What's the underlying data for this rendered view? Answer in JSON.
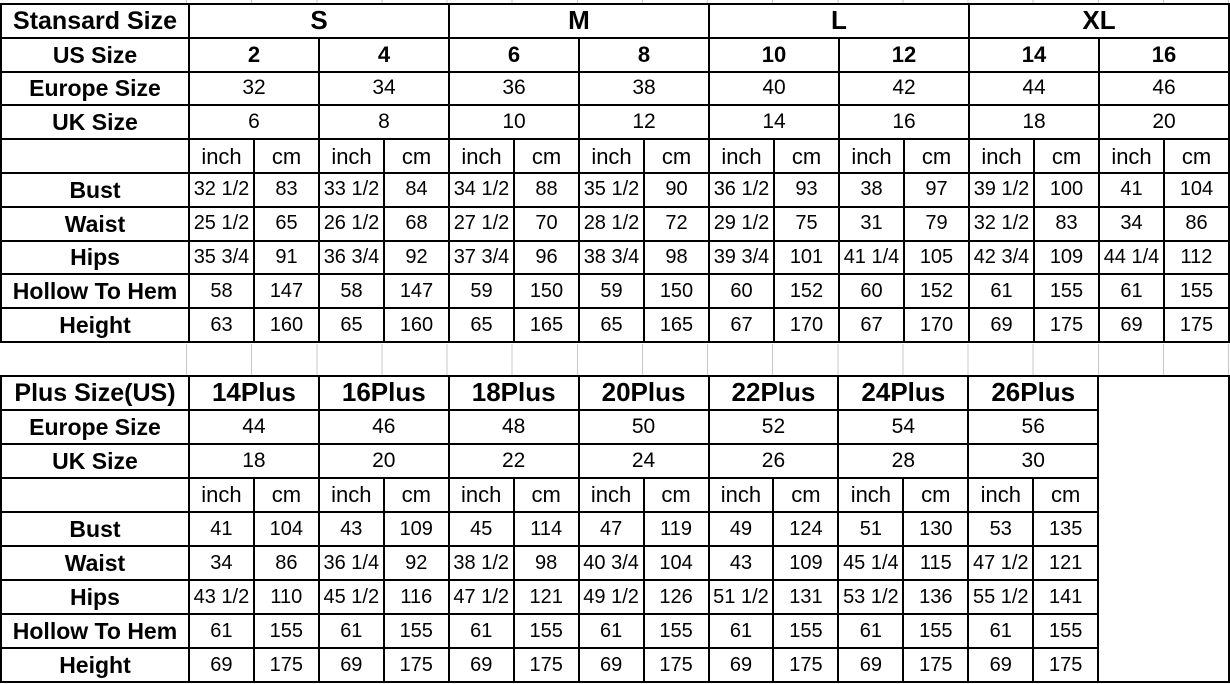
{
  "colors": {
    "background": "#ffffff",
    "table_border": "#000000",
    "faint_grid": "#c8c8c8",
    "text": "#000000"
  },
  "standard_table": {
    "corner_label": "Stansard Size",
    "groups": [
      "S",
      "M",
      "L",
      "XL"
    ],
    "size_rows": [
      {
        "label": "US Size",
        "bold_values": true,
        "values": [
          "2",
          "4",
          "6",
          "8",
          "10",
          "12",
          "14",
          "16"
        ]
      },
      {
        "label": "Europe Size",
        "bold_values": false,
        "values": [
          "32",
          "34",
          "36",
          "38",
          "40",
          "42",
          "44",
          "46"
        ]
      },
      {
        "label": "UK Size",
        "bold_values": false,
        "values": [
          "6",
          "8",
          "10",
          "12",
          "14",
          "16",
          "18",
          "20"
        ]
      }
    ],
    "unit_labels": [
      "inch",
      "cm"
    ],
    "measure_rows": [
      {
        "label": "Bust",
        "values": [
          "32 1/2",
          "83",
          "33 1/2",
          "84",
          "34 1/2",
          "88",
          "35 1/2",
          "90",
          "36 1/2",
          "93",
          "38",
          "97",
          "39 1/2",
          "100",
          "41",
          "104"
        ]
      },
      {
        "label": "Waist",
        "values": [
          "25 1/2",
          "65",
          "26 1/2",
          "68",
          "27 1/2",
          "70",
          "28 1/2",
          "72",
          "29 1/2",
          "75",
          "31",
          "79",
          "32 1/2",
          "83",
          "34",
          "86"
        ]
      },
      {
        "label": "Hips",
        "values": [
          "35 3/4",
          "91",
          "36 3/4",
          "92",
          "37 3/4",
          "96",
          "38 3/4",
          "98",
          "39 3/4",
          "101",
          "41 1/4",
          "105",
          "42 3/4",
          "109",
          "44 1/4",
          "112"
        ]
      },
      {
        "label": "Hollow To Hem",
        "values": [
          "58",
          "147",
          "58",
          "147",
          "59",
          "150",
          "59",
          "150",
          "60",
          "152",
          "60",
          "152",
          "61",
          "155",
          "61",
          "155"
        ]
      },
      {
        "label": "Height",
        "values": [
          "63",
          "160",
          "65",
          "160",
          "65",
          "165",
          "65",
          "165",
          "67",
          "170",
          "67",
          "170",
          "69",
          "175",
          "69",
          "175"
        ]
      }
    ]
  },
  "plus_table": {
    "corner_label": "Plus Size(US)",
    "groups": [
      "14Plus",
      "16Plus",
      "18Plus",
      "20Plus",
      "22Plus",
      "24Plus",
      "26Plus"
    ],
    "size_rows": [
      {
        "label": "Europe Size",
        "bold_values": false,
        "values": [
          "44",
          "46",
          "48",
          "50",
          "52",
          "54",
          "56"
        ]
      },
      {
        "label": "UK Size",
        "bold_values": false,
        "values": [
          "18",
          "20",
          "22",
          "24",
          "26",
          "28",
          "30"
        ]
      }
    ],
    "unit_labels": [
      "inch",
      "cm"
    ],
    "measure_rows": [
      {
        "label": "Bust",
        "values": [
          "41",
          "104",
          "43",
          "109",
          "45",
          "114",
          "47",
          "119",
          "49",
          "124",
          "51",
          "130",
          "53",
          "135"
        ]
      },
      {
        "label": "Waist",
        "values": [
          "34",
          "86",
          "36 1/4",
          "92",
          "38 1/2",
          "98",
          "40 3/4",
          "104",
          "43",
          "109",
          "45 1/4",
          "115",
          "47 1/2",
          "121"
        ]
      },
      {
        "label": "Hips",
        "values": [
          "43 1/2",
          "110",
          "45 1/2",
          "116",
          "47 1/2",
          "121",
          "49 1/2",
          "126",
          "51 1/2",
          "131",
          "53 1/2",
          "136",
          "55 1/2",
          "141"
        ]
      },
      {
        "label": "Hollow To Hem",
        "values": [
          "61",
          "155",
          "61",
          "155",
          "61",
          "155",
          "61",
          "155",
          "61",
          "155",
          "61",
          "155",
          "61",
          "155"
        ]
      },
      {
        "label": "Height",
        "values": [
          "69",
          "175",
          "69",
          "175",
          "69",
          "175",
          "69",
          "175",
          "69",
          "175",
          "69",
          "175",
          "69",
          "175"
        ]
      }
    ]
  }
}
